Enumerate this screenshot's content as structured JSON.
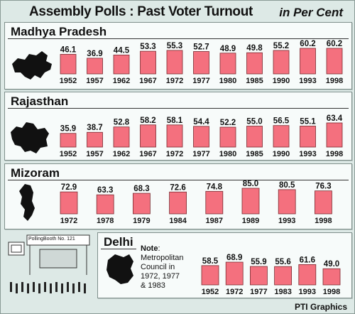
{
  "title": "Assembly Polls : Past Voter Turnout",
  "unit": "in Per Cent",
  "credit": "PTI Graphics",
  "booth_sign": "PollingBooth No. 121",
  "note_label": "Note",
  "note_text": "Metropolitan Council in 1972, 1977 & 1983",
  "colors": {
    "bar": "#f4707e",
    "bar_stroke": "#7a2a30",
    "background": "#dde9e6",
    "panel": "#f7fbfa",
    "map": "#111111"
  },
  "icons": [
    "state-map-icon",
    "polling-booth-icon"
  ],
  "chart_data": [
    {
      "type": "bar",
      "title": "Madhya Pradesh",
      "categories": [
        "1952",
        "1957",
        "1962",
        "1967",
        "1972",
        "1977",
        "1980",
        "1985",
        "1990",
        "1993",
        "1998"
      ],
      "values": [
        46.1,
        36.9,
        44.5,
        53.3,
        55.3,
        52.7,
        48.9,
        49.8,
        55.2,
        60.2,
        60.2
      ],
      "labels": [
        "46.1",
        "36.9",
        "44.5",
        "53.3",
        "55.3",
        "52.7",
        "48.9",
        "49.8",
        "55.2",
        "60.2",
        "60.2"
      ],
      "grid": false
    },
    {
      "type": "bar",
      "title": "Rajasthan",
      "categories": [
        "1952",
        "1957",
        "1962",
        "1967",
        "1972",
        "1977",
        "1980",
        "1985",
        "1990",
        "1993",
        "1998"
      ],
      "values": [
        35.9,
        38.7,
        52.8,
        58.2,
        58.1,
        54.4,
        52.2,
        55.0,
        56.5,
        55.1,
        63.4
      ],
      "labels": [
        "35.9",
        "38.7",
        "52.8",
        "58.2",
        "58.1",
        "54.4",
        "52.2",
        "55.0",
        "56.5",
        "55.1",
        "63.4"
      ],
      "grid": false
    },
    {
      "type": "bar",
      "title": "Mizoram",
      "categories": [
        "1972",
        "1978",
        "1979",
        "1984",
        "1987",
        "1989",
        "1993",
        "1998"
      ],
      "values": [
        72.9,
        63.3,
        68.3,
        72.6,
        74.8,
        85.0,
        80.5,
        76.3
      ],
      "labels": [
        "72.9",
        "63.3",
        "68.3",
        "72.6",
        "74.8",
        "85.0",
        "80.5",
        "76.3"
      ],
      "grid": false
    },
    {
      "type": "bar",
      "title": "Delhi",
      "categories": [
        "1952",
        "1972",
        "1977",
        "1983",
        "1993",
        "1998"
      ],
      "values": [
        58.5,
        68.9,
        55.9,
        55.6,
        61.6,
        49.0
      ],
      "labels": [
        "58.5",
        "68.9",
        "55.9",
        "55.6",
        "61.6",
        "49.0"
      ],
      "grid": false
    }
  ]
}
